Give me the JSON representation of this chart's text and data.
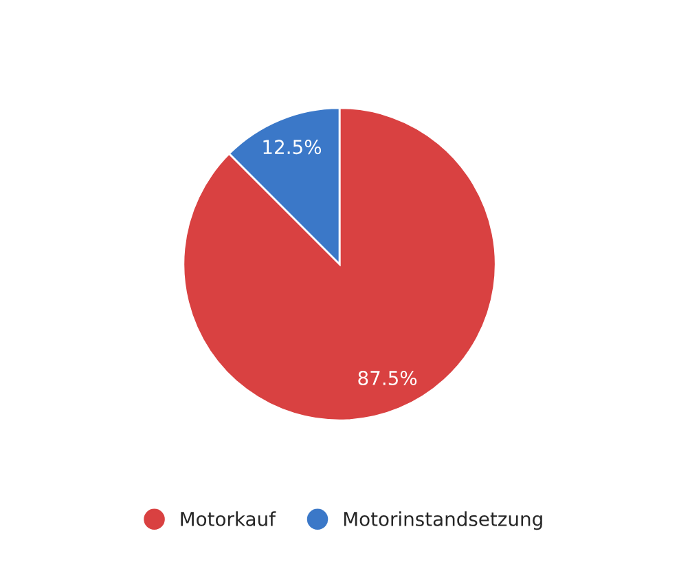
{
  "chart_data": {
    "type": "pie",
    "categories": [
      "Motorkauf",
      "Motorinstandsetzung"
    ],
    "values": [
      87.5,
      12.5
    ],
    "colors": [
      "#d94141",
      "#3b78c8"
    ],
    "value_labels": [
      "87.5%",
      "12.5%"
    ],
    "legend": "bottom"
  }
}
